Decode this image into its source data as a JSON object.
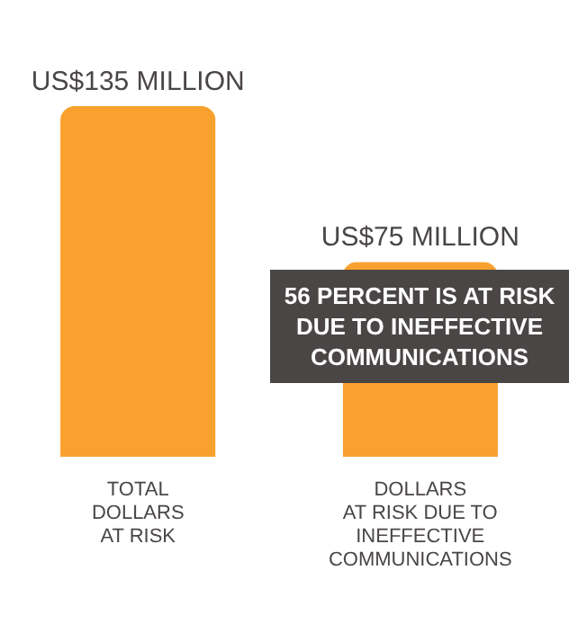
{
  "chart_data": {
    "type": "bar",
    "categories": [
      "TOTAL\nDOLLARS\nAT RISK",
      "DOLLARS\nAT RISK DUE TO\nINEFFECTIVE\nCOMMUNICATIONS"
    ],
    "values": [
      135,
      75
    ],
    "color": "#f9a12e",
    "value_labels": [
      "US$135 MILLION",
      "US$75 MILLION"
    ],
    "annotations": [
      "56 PERCENT IS AT RISK\nDUE TO INEFFECTIVE\nCOMMUNICATIONS"
    ]
  }
}
